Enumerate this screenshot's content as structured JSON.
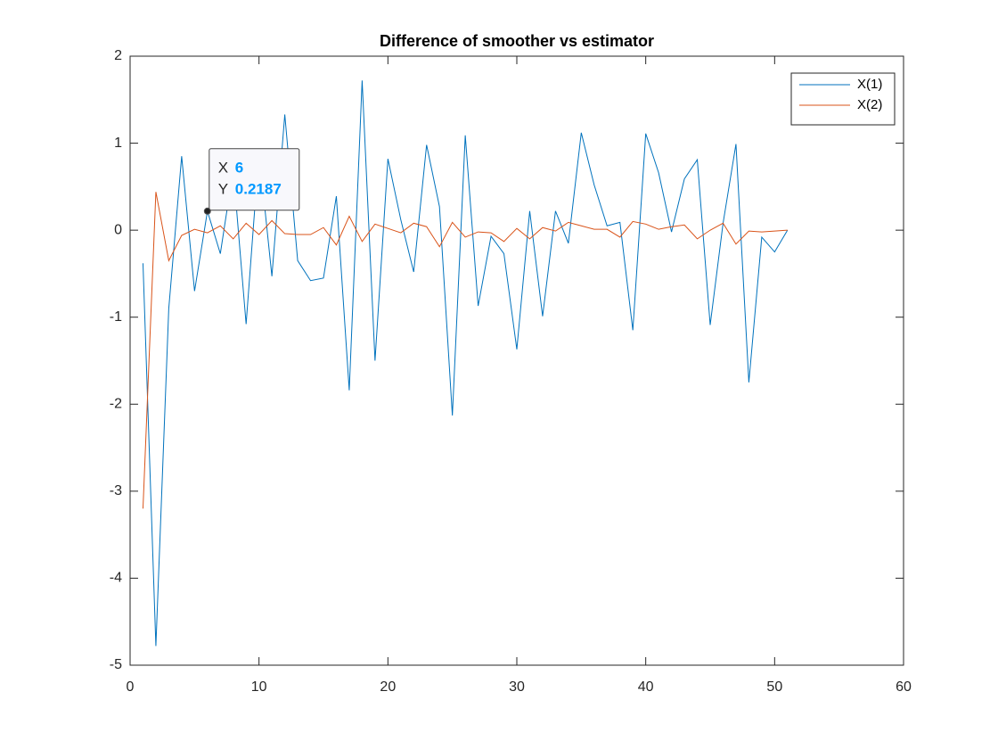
{
  "chart_data": {
    "type": "line",
    "title": "Difference of smoother vs estimator",
    "x": [
      1,
      2,
      3,
      4,
      5,
      6,
      7,
      8,
      9,
      10,
      11,
      12,
      13,
      14,
      15,
      16,
      17,
      18,
      19,
      20,
      21,
      22,
      23,
      24,
      25,
      26,
      27,
      28,
      29,
      30,
      31,
      32,
      33,
      34,
      35,
      36,
      37,
      38,
      39,
      40,
      41,
      42,
      43,
      44,
      45,
      46,
      47,
      48,
      49,
      50,
      51
    ],
    "series": [
      {
        "name": "X(1)",
        "color": "#0072BD",
        "values": [
          -0.38,
          -4.78,
          -0.9,
          0.85,
          -0.7,
          0.2187,
          -0.27,
          0.7,
          -1.08,
          0.9,
          -0.53,
          1.33,
          -0.35,
          -0.58,
          -0.55,
          0.39,
          -1.84,
          1.72,
          -1.5,
          0.82,
          0.12,
          -0.48,
          0.98,
          0.27,
          -2.13,
          1.09,
          -0.87,
          -0.07,
          -0.27,
          -1.37,
          0.22,
          -0.99,
          0.22,
          -0.15,
          1.12,
          0.52,
          0.05,
          0.09,
          -1.15,
          1.11,
          0.66,
          -0.02,
          0.59,
          0.81,
          -1.09,
          0.08,
          0.99,
          -1.75,
          -0.08,
          -0.25,
          0
        ]
      },
      {
        "name": "X(2)",
        "color": "#D95319",
        "values": [
          -3.2,
          0.44,
          -0.35,
          -0.06,
          0.01,
          -0.03,
          0.05,
          -0.1,
          0.08,
          -0.05,
          0.11,
          -0.04,
          -0.05,
          -0.05,
          0.03,
          -0.17,
          0.16,
          -0.13,
          0.07,
          0.02,
          -0.03,
          0.08,
          0.04,
          -0.19,
          0.09,
          -0.08,
          -0.02,
          -0.03,
          -0.13,
          0.02,
          -0.1,
          0.03,
          -0.01,
          0.09,
          0.05,
          0.01,
          0.01,
          -0.08,
          0.1,
          0.07,
          0.01,
          0.04,
          0.06,
          -0.1,
          0,
          0.08,
          -0.16,
          -0.01,
          -0.02,
          -0.01,
          0
        ]
      }
    ],
    "xlim": [
      0,
      60
    ],
    "xticks": [
      0,
      10,
      20,
      30,
      40,
      50,
      60
    ],
    "ylim": [
      -5,
      2
    ],
    "yticks": [
      -5,
      -4,
      -3,
      -2,
      -1,
      0,
      1,
      2
    ],
    "grid": false,
    "legend": "upper right",
    "datatip": {
      "x_label": "X",
      "x": 6,
      "y_label": "Y",
      "y": 0.2187,
      "color": "#0099ff"
    }
  }
}
